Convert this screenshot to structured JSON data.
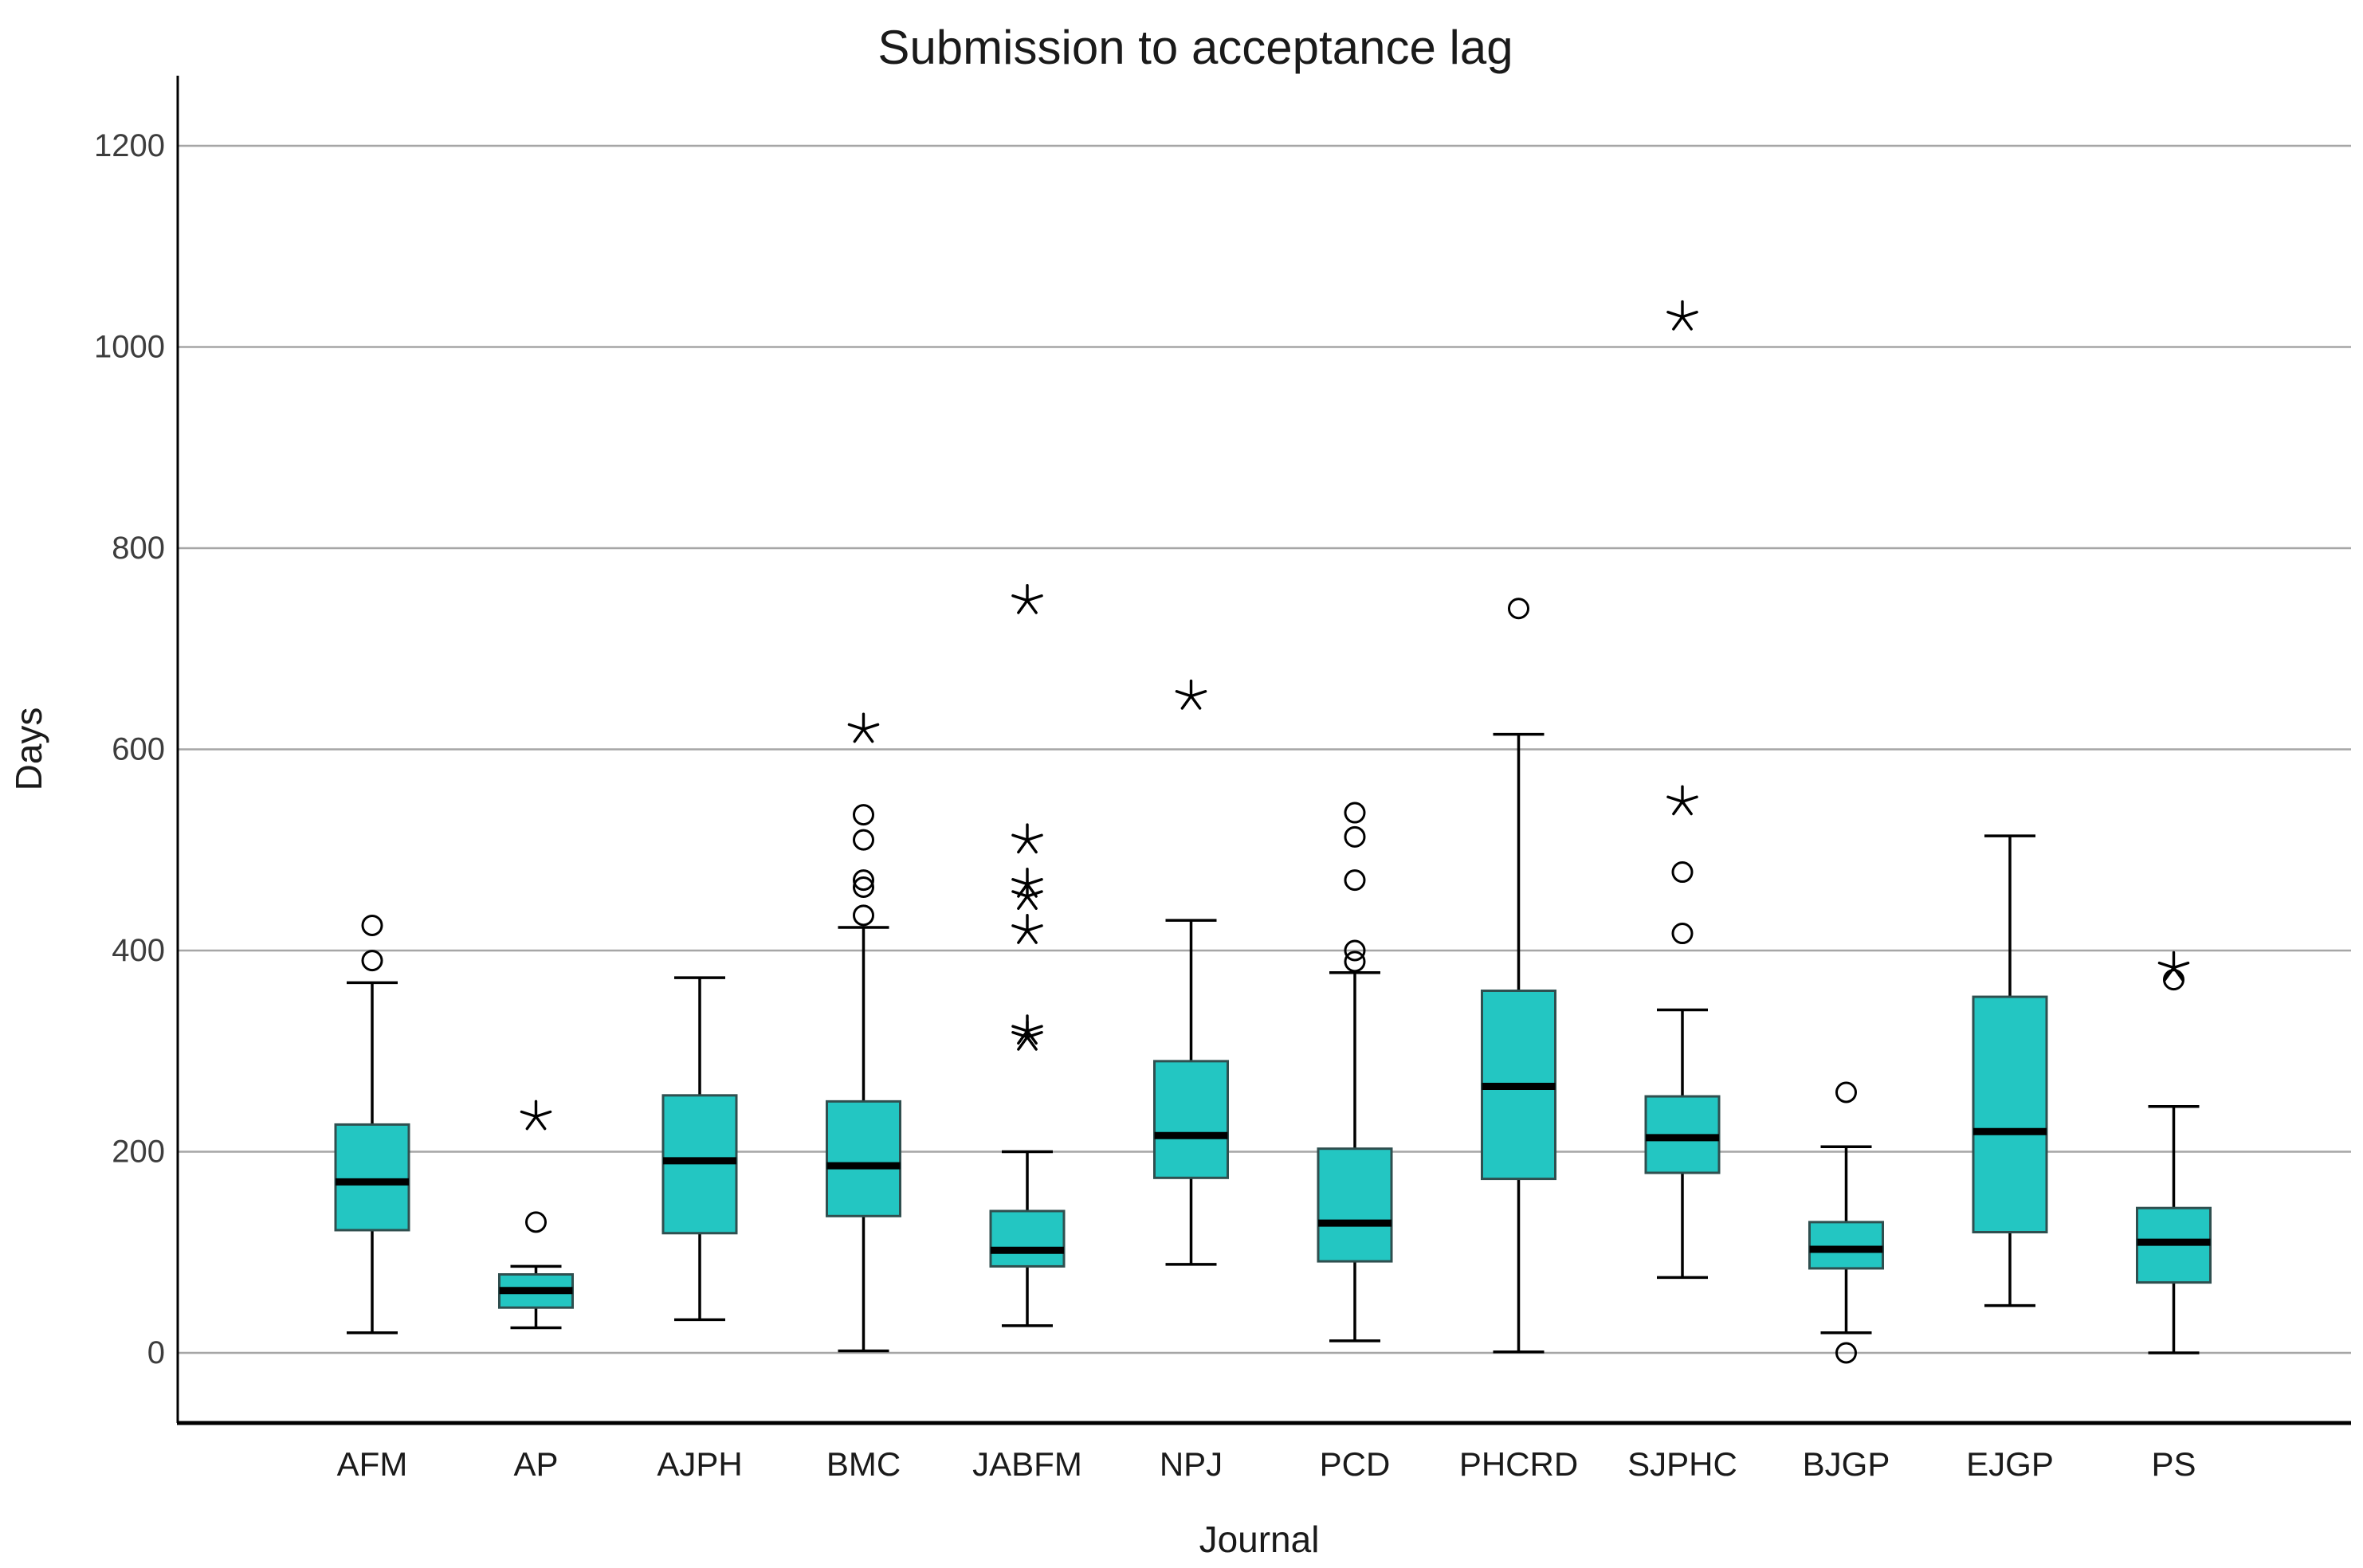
{
  "page": {
    "background": "#ffffff"
  },
  "chart_data": {
    "type": "boxplot",
    "title": "Submission to acceptance lag",
    "xlabel": "Journal",
    "ylabel": "Days",
    "ylim": [
      0,
      1260
    ],
    "yticks": [
      0,
      200,
      400,
      600,
      800,
      1000,
      1200
    ],
    "grid": "horizontal",
    "legend": "none",
    "categories": [
      "AFM",
      "AP",
      "AJPH",
      "BMC",
      "JABFM",
      "NPJ",
      "PCD",
      "PHCRD",
      "SJPHC",
      "BJGP",
      "EJGP",
      "PS"
    ],
    "series": [
      {
        "label": "AFM",
        "whisker_low": 20,
        "q1": 122,
        "median": 170,
        "q3": 227,
        "whisker_high": 368,
        "outliers_circle": [
          425,
          390
        ],
        "outliers_star": []
      },
      {
        "label": "AP",
        "whisker_low": 25,
        "q1": 45,
        "median": 62,
        "q3": 78,
        "whisker_high": 86,
        "outliers_circle": [
          130
        ],
        "outliers_star": [
          235
        ]
      },
      {
        "label": "AJPH",
        "whisker_low": 33,
        "q1": 119,
        "median": 191,
        "q3": 256,
        "whisker_high": 373,
        "outliers_circle": [],
        "outliers_star": []
      },
      {
        "label": "BMC",
        "whisker_low": 2,
        "q1": 136,
        "median": 186,
        "q3": 250,
        "whisker_high": 423,
        "outliers_circle": [
          535,
          510,
          470,
          463,
          435
        ],
        "outliers_star": [
          620
        ]
      },
      {
        "label": "JABFM",
        "whisker_low": 27,
        "q1": 86,
        "median": 102,
        "q3": 141,
        "whisker_high": 200,
        "outliers_circle": [],
        "outliers_star": [
          748,
          510,
          466,
          454,
          420,
          320,
          314
        ]
      },
      {
        "label": "NPJ",
        "whisker_low": 88,
        "q1": 174,
        "median": 216,
        "q3": 290,
        "whisker_high": 430,
        "outliers_circle": [],
        "outliers_star": [
          653
        ]
      },
      {
        "label": "PCD",
        "whisker_low": 12,
        "q1": 91,
        "median": 129,
        "q3": 203,
        "whisker_high": 378,
        "outliers_circle": [
          537,
          513,
          470,
          400,
          389
        ],
        "outliers_star": []
      },
      {
        "label": "PHCRD",
        "whisker_low": 1,
        "q1": 173,
        "median": 265,
        "q3": 360,
        "whisker_high": 615,
        "outliers_circle": [
          740
        ],
        "outliers_star": []
      },
      {
        "label": "SJPHC",
        "whisker_low": 75,
        "q1": 179,
        "median": 214,
        "q3": 255,
        "whisker_high": 341,
        "outliers_circle": [
          478,
          417
        ],
        "outliers_star": [
          1030,
          548
        ]
      },
      {
        "label": "BJGP",
        "whisker_low": 20,
        "q1": 84,
        "median": 103,
        "q3": 130,
        "whisker_high": 205,
        "outliers_circle": [
          259,
          0
        ],
        "outliers_star": []
      },
      {
        "label": "EJGP",
        "whisker_low": 47,
        "q1": 120,
        "median": 220,
        "q3": 354,
        "whisker_high": 514,
        "outliers_circle": [],
        "outliers_star": []
      },
      {
        "label": "PS",
        "whisker_low": 0,
        "q1": 70,
        "median": 110,
        "q3": 144,
        "whisker_high": 245,
        "outliers_circle": [
          371
        ],
        "outliers_star": [
          383
        ]
      }
    ],
    "colors": {
      "box_fill": "#23C6C2",
      "box_border": "#2F4F4F",
      "median": "#000000",
      "whisker": "#000000",
      "outlier": "#000000",
      "gridline": "#A6A6A6",
      "axis": "#000000",
      "title_text": "#1A1A1A",
      "tick_text": "#3D3D3D",
      "label_text": "#1A1A1A"
    }
  }
}
